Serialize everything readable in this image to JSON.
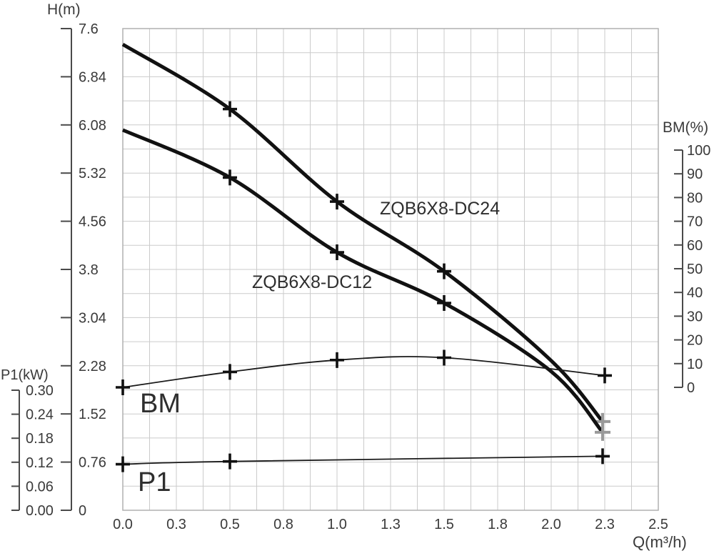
{
  "colors": {
    "background": "#ffffff",
    "grid": "#cbcbcb",
    "border": "#b0b0b0",
    "axis": "#4a4a4a",
    "text": "#3a3a3a",
    "curve": "#111111",
    "thin_curve": "#1a1a1a",
    "marker": "#111111",
    "end_marker": "#999999"
  },
  "chart_data": {
    "type": "line",
    "title": "",
    "grid": true,
    "legend_position": "inline-labels",
    "x": {
      "label": "Q(m³/h)",
      "min": 0,
      "max": 2.5,
      "tick_step": 0.25,
      "grid_step": 0.125,
      "tick_labels": [
        "0.0",
        "0.3",
        "0.5",
        "0.8",
        "1.0",
        "1.3",
        "1.5",
        "1.8",
        "2.0",
        "2.3",
        "2.5"
      ]
    },
    "y_axes": [
      {
        "id": "h",
        "label": "H(m)",
        "side": "left",
        "min": 0,
        "max": 7.6,
        "tick_labels": [
          "7.6",
          "6.84",
          "6.08",
          "5.32",
          "4.56",
          "3.8",
          "3.04",
          "2.28",
          "1.52",
          "0.76",
          "0"
        ]
      },
      {
        "id": "p1",
        "label": "P1(kW)",
        "side": "far-left",
        "min": 0,
        "max": 0.3,
        "tick_labels": [
          "0.30",
          "0.24",
          "0.18",
          "0.12",
          "0.06",
          "0.00"
        ]
      },
      {
        "id": "bm",
        "label": "BM(%)",
        "side": "right",
        "min": 0,
        "max": 100,
        "tick_labels": [
          "100",
          "90",
          "80",
          "70",
          "60",
          "50",
          "40",
          "30",
          "20",
          "10",
          "0"
        ]
      }
    ],
    "series": [
      {
        "name": "ZQB6X8-DC24",
        "axis": "h",
        "x": [
          0,
          0.5,
          1.0,
          1.5,
          2.0,
          2.24
        ],
        "values": [
          7.35,
          6.33,
          4.87,
          3.77,
          2.36,
          1.4
        ],
        "line_weight": "thick",
        "marker": "plus",
        "marker_indices": [
          1,
          2,
          3
        ],
        "gray_end_marker": true
      },
      {
        "name": "ZQB6X8-DC12",
        "axis": "h",
        "x": [
          0,
          0.5,
          1.0,
          1.5,
          2.0,
          2.24
        ],
        "values": [
          6.0,
          5.25,
          4.07,
          3.27,
          2.19,
          1.23
        ],
        "line_weight": "thick",
        "marker": "plus",
        "marker_indices": [
          1,
          2,
          3
        ],
        "gray_end_marker": true
      },
      {
        "name": "BM",
        "axis": "bm",
        "x": [
          0,
          0.5,
          1.0,
          1.5,
          2.25
        ],
        "values": [
          0,
          6.5,
          11.5,
          12.5,
          5
        ],
        "line_weight": "thin",
        "marker": "plus",
        "marker_indices": [
          0,
          1,
          2,
          3,
          4
        ],
        "gray_end_marker": false
      },
      {
        "name": "P1",
        "axis": "p1",
        "x": [
          0,
          0.5,
          2.24
        ],
        "values": [
          0.115,
          0.122,
          0.135
        ],
        "line_weight": "thin",
        "marker": "plus",
        "marker_indices": [
          0,
          1,
          2
        ],
        "gray_end_marker": false
      }
    ]
  }
}
